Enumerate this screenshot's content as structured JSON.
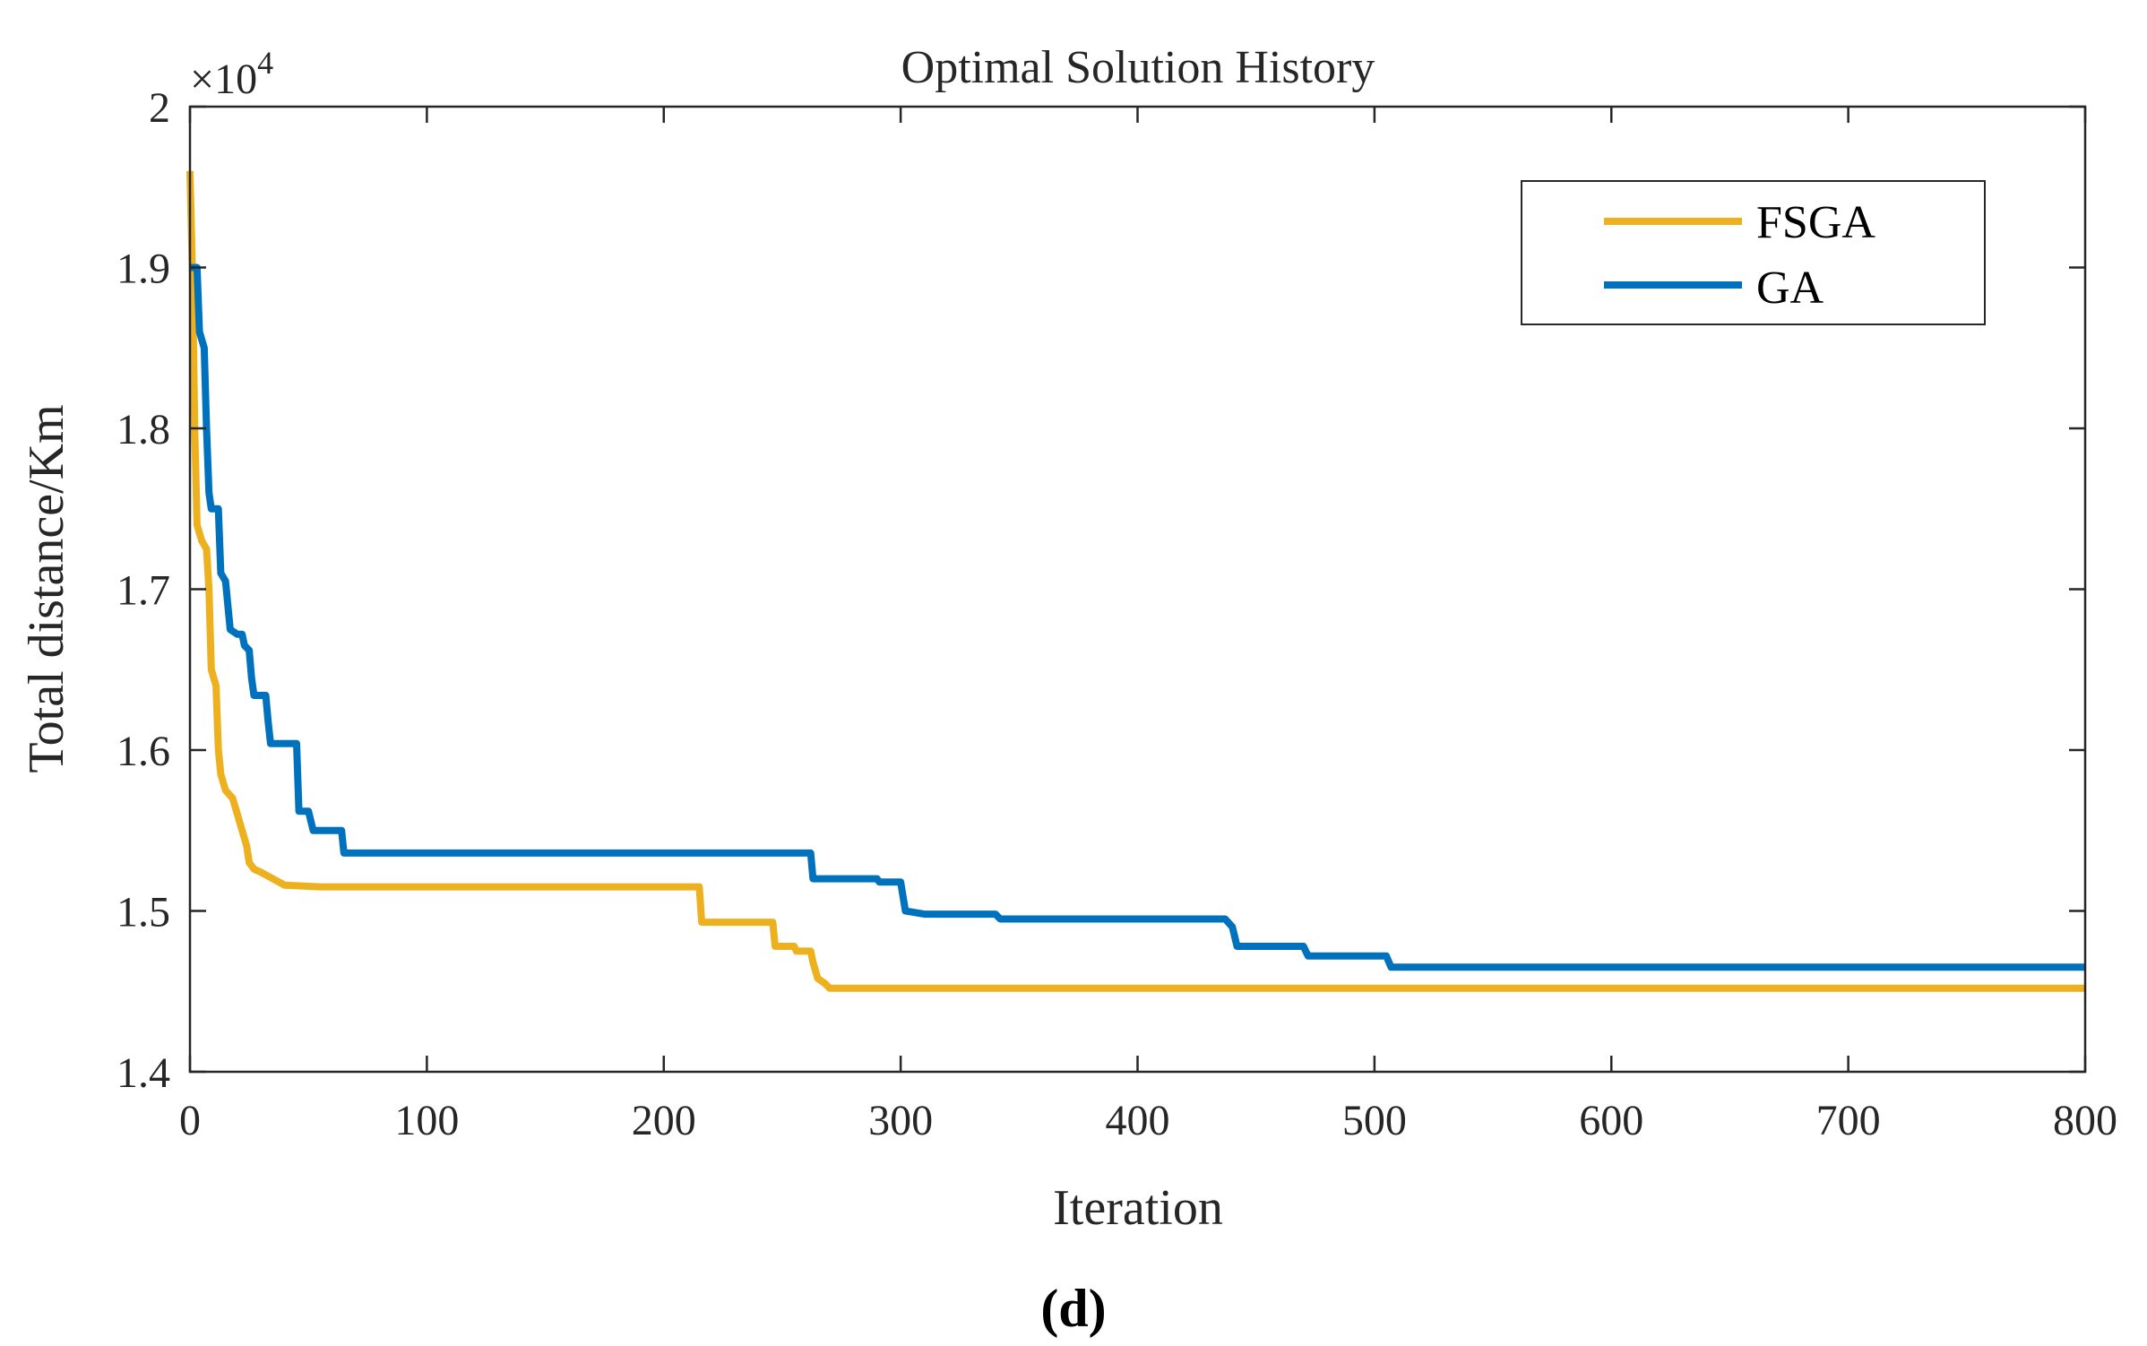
{
  "chart_data": {
    "type": "line",
    "title": "Optimal Solution History",
    "xlabel": "Iteration",
    "ylabel": "Total distance/Km",
    "y_exponent_label": "×10",
    "y_exponent_power": "4",
    "xlim": [
      0,
      800
    ],
    "ylim": [
      1.4,
      2.0
    ],
    "x_ticks": [
      0,
      100,
      200,
      300,
      400,
      500,
      600,
      700,
      800
    ],
    "x_tick_labels": [
      "0",
      "100",
      "200",
      "300",
      "400",
      "500",
      "600",
      "700",
      "800"
    ],
    "y_ticks": [
      1.4,
      1.5,
      1.6,
      1.7,
      1.8,
      1.9,
      2.0
    ],
    "y_tick_labels": [
      "1.4",
      "1.5",
      "1.6",
      "1.7",
      "1.8",
      "1.9",
      "2"
    ],
    "grid": false,
    "legend_position": "top-right",
    "caption": "(d)",
    "series": [
      {
        "name": "FSGA",
        "color": "#EDB120",
        "points": [
          [
            0,
            1.96
          ],
          [
            1,
            1.9
          ],
          [
            2,
            1.8
          ],
          [
            3,
            1.74
          ],
          [
            5,
            1.73
          ],
          [
            7,
            1.725
          ],
          [
            8,
            1.7
          ],
          [
            9,
            1.65
          ],
          [
            11,
            1.64
          ],
          [
            12,
            1.6
          ],
          [
            13,
            1.585
          ],
          [
            15,
            1.575
          ],
          [
            18,
            1.57
          ],
          [
            20,
            1.56
          ],
          [
            22,
            1.55
          ],
          [
            23,
            1.545
          ],
          [
            24,
            1.54
          ],
          [
            25,
            1.53
          ],
          [
            27,
            1.526
          ],
          [
            30,
            1.524
          ],
          [
            35,
            1.52
          ],
          [
            40,
            1.516
          ],
          [
            55,
            1.515
          ],
          [
            215,
            1.515
          ],
          [
            216,
            1.493
          ],
          [
            246,
            1.493
          ],
          [
            247,
            1.478
          ],
          [
            255,
            1.478
          ],
          [
            256,
            1.475
          ],
          [
            262,
            1.475
          ],
          [
            263,
            1.468
          ],
          [
            265,
            1.458
          ],
          [
            268,
            1.455
          ],
          [
            270,
            1.452
          ],
          [
            800,
            1.452
          ]
        ]
      },
      {
        "name": "GA",
        "color": "#0072BD",
        "points": [
          [
            0,
            1.9
          ],
          [
            3,
            1.9
          ],
          [
            4,
            1.86
          ],
          [
            6,
            1.85
          ],
          [
            7,
            1.8
          ],
          [
            8,
            1.76
          ],
          [
            9,
            1.75
          ],
          [
            12,
            1.75
          ],
          [
            13,
            1.71
          ],
          [
            15,
            1.705
          ],
          [
            16,
            1.69
          ],
          [
            17,
            1.675
          ],
          [
            20,
            1.672
          ],
          [
            22,
            1.672
          ],
          [
            23,
            1.665
          ],
          [
            25,
            1.662
          ],
          [
            26,
            1.645
          ],
          [
            27,
            1.634
          ],
          [
            32,
            1.634
          ],
          [
            33,
            1.618
          ],
          [
            34,
            1.604
          ],
          [
            45,
            1.604
          ],
          [
            46,
            1.562
          ],
          [
            50,
            1.562
          ],
          [
            52,
            1.55
          ],
          [
            64,
            1.55
          ],
          [
            65,
            1.536
          ],
          [
            262,
            1.536
          ],
          [
            263,
            1.52
          ],
          [
            290,
            1.52
          ],
          [
            291,
            1.518
          ],
          [
            300,
            1.518
          ],
          [
            302,
            1.5
          ],
          [
            310,
            1.498
          ],
          [
            340,
            1.498
          ],
          [
            342,
            1.495
          ],
          [
            437,
            1.495
          ],
          [
            440,
            1.49
          ],
          [
            442,
            1.478
          ],
          [
            470,
            1.478
          ],
          [
            472,
            1.472
          ],
          [
            505,
            1.472
          ],
          [
            507,
            1.465
          ],
          [
            800,
            1.465
          ]
        ]
      }
    ]
  }
}
